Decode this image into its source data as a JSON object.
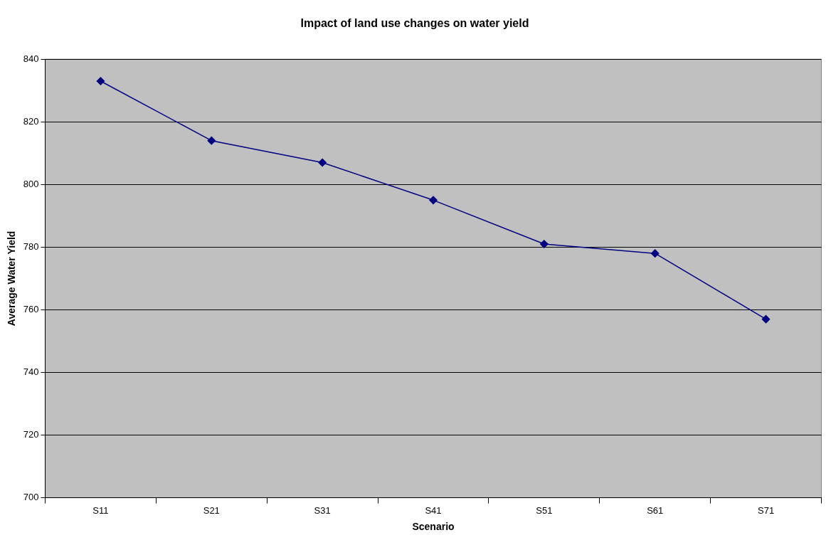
{
  "chart_data": {
    "type": "line",
    "title": "Impact of land use changes on water yield",
    "xlabel": "Scenario",
    "ylabel": "Average Water Yield",
    "categories": [
      "S11",
      "S21",
      "S31",
      "S41",
      "S51",
      "S61",
      "S71"
    ],
    "series": [
      {
        "color": "#000080",
        "values": [
          833,
          814,
          807,
          795,
          781,
          778,
          757
        ]
      }
    ],
    "ylim": [
      700,
      840
    ],
    "yticks": [
      700,
      720,
      740,
      760,
      780,
      800,
      820,
      840
    ],
    "grid": "y",
    "legend": false,
    "marker": "diamond",
    "line_style": "solid"
  }
}
